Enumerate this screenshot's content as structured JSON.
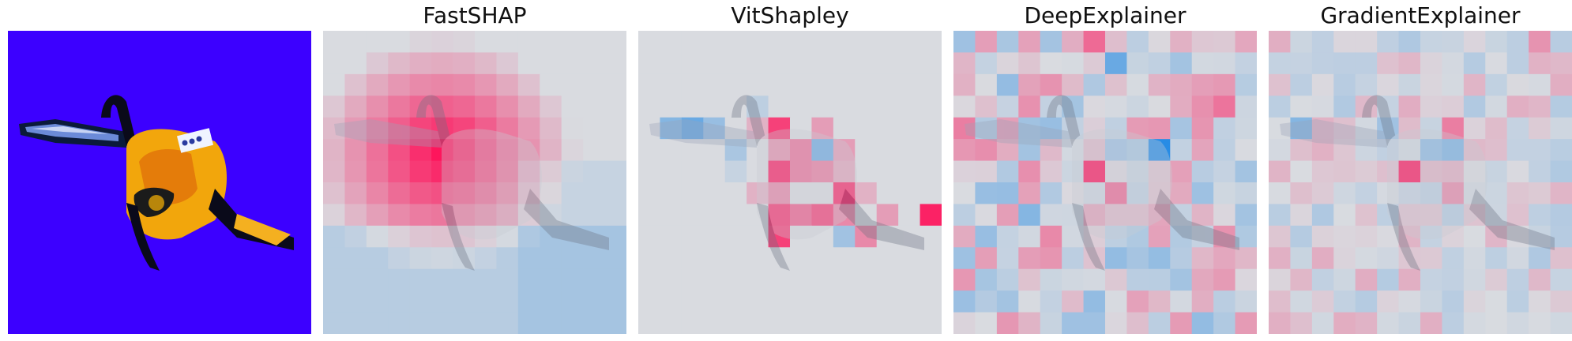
{
  "panels": [
    {
      "id": "original",
      "title": ""
    },
    {
      "id": "fastshap",
      "title": "FastSHAP"
    },
    {
      "id": "vitshapley",
      "title": "VitShapley"
    },
    {
      "id": "deepexplainer",
      "title": "DeepExplainer"
    },
    {
      "id": "gradientexplainer",
      "title": "GradientExplainer"
    }
  ],
  "colors": {
    "background_blue": "#3c00ff",
    "positive": "#ff0d57",
    "negative": "#1e88e5",
    "neutral": "#d9dbe0"
  }
}
